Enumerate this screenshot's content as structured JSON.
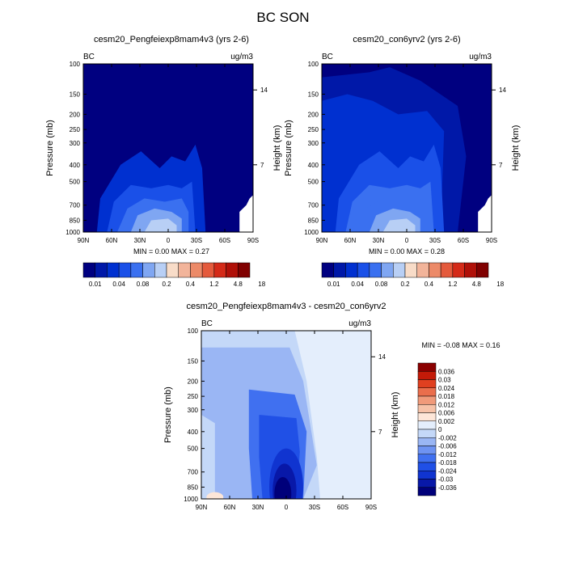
{
  "figure_title": "BC SON",
  "colors": {
    "abs_scale": [
      "#000080",
      "#0018a8",
      "#0030d0",
      "#1a50e8",
      "#3a70f0",
      "#7fa6f2",
      "#b8cff5",
      "#f8dcc8",
      "#f2b49a",
      "#ec8a68",
      "#e45a3c",
      "#d42a18",
      "#b01008",
      "#800000"
    ],
    "diff_scale": [
      "#00007a",
      "#0818a8",
      "#1034d0",
      "#2050e6",
      "#4070f0",
      "#6e93f2",
      "#9ab6f4",
      "#c4d8f8",
      "#e4eefc",
      "#fde6d8",
      "#f6c2a8",
      "#f09a7a",
      "#ea6e4c",
      "#e04020",
      "#c41a08",
      "#8a0000"
    ]
  },
  "chart_data": [
    {
      "type": "heatmap",
      "title": "cesm20_Pengfeiexp8mam4v3 (yrs 2-6)",
      "left_string": "BC",
      "right_string": "ug/m3",
      "ylabel": "Pressure (mb)",
      "y2label": "Height (km)",
      "x_ticks": [
        "90N",
        "60N",
        "30N",
        "0",
        "30S",
        "60S",
        "90S"
      ],
      "y_ticks": [
        "100",
        "150",
        "200",
        "250",
        "300",
        "400",
        "500",
        "700",
        "850",
        "1000"
      ],
      "y2_ticks": [
        "14",
        "7"
      ],
      "stats": "MIN =   0.00   MAX =    0.27",
      "colorbar_labels": [
        "0.01",
        "0.04",
        "0.08",
        "0.2",
        "0.4",
        "1.2",
        "4.8",
        "18"
      ],
      "ylim": [
        1000,
        100
      ],
      "xlim": [
        90,
        -90
      ]
    },
    {
      "type": "heatmap",
      "title": "cesm20_con6yrv2 (yrs 2-6)",
      "left_string": "BC",
      "right_string": "ug/m3",
      "ylabel": "Pressure (mb)",
      "y2label": "Height (km)",
      "x_ticks": [
        "90N",
        "60N",
        "30N",
        "0",
        "30S",
        "60S",
        "90S"
      ],
      "y_ticks": [
        "100",
        "150",
        "200",
        "250",
        "300",
        "400",
        "500",
        "700",
        "850",
        "1000"
      ],
      "y2_ticks": [
        "14",
        "7"
      ],
      "stats": "MIN =   0.00   MAX =    0.28",
      "colorbar_labels": [
        "0.01",
        "0.04",
        "0.08",
        "0.2",
        "0.4",
        "1.2",
        "4.8",
        "18"
      ],
      "ylim": [
        1000,
        100
      ],
      "xlim": [
        90,
        -90
      ]
    },
    {
      "type": "heatmap",
      "title": "cesm20_Pengfeiexp8mam4v3 - cesm20_con6yrv2",
      "left_string": "BC",
      "right_string": "ug/m3",
      "ylabel": "Pressure (mb)",
      "y2label": "Height (km)",
      "x_ticks": [
        "90N",
        "60N",
        "30N",
        "0",
        "30S",
        "60S",
        "90S"
      ],
      "y_ticks": [
        "100",
        "150",
        "200",
        "250",
        "300",
        "400",
        "500",
        "700",
        "850",
        "1000"
      ],
      "y2_ticks": [
        "14",
        "7"
      ],
      "stats": "MIN =  -0.08   MAX =    0.16",
      "colorbar_labels": [
        "0.036",
        "0.03",
        "0.024",
        "0.018",
        "0.012",
        "0.006",
        "0.002",
        "0",
        "-0.002",
        "-0.006",
        "-0.012",
        "-0.018",
        "-0.024",
        "-0.03",
        "-0.036"
      ],
      "ylim": [
        1000,
        100
      ],
      "xlim": [
        90,
        -90
      ]
    }
  ]
}
